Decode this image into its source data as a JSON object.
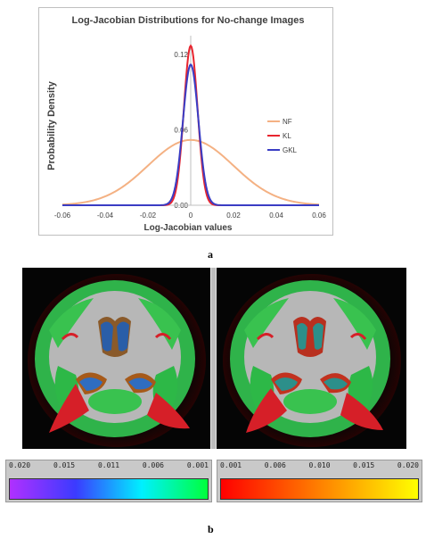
{
  "chart_data": {
    "type": "line",
    "title": "Log-Jacobian Distributions for No-change Images",
    "xlabel": "Log-Jacobian values",
    "ylabel": "Probability Density",
    "xlim": [
      -0.06,
      0.06
    ],
    "ylim": [
      0,
      0.135
    ],
    "x_ticks": [
      "-0.06",
      "-0.04",
      "-0.02",
      "0",
      "0.02",
      "0.04",
      "0.06"
    ],
    "y_ticks": [
      "0.00",
      "0.06",
      "0.12"
    ],
    "y_tick_values": [
      0,
      0.06,
      0.12
    ],
    "x_tick_values": [
      -0.06,
      -0.04,
      -0.02,
      0,
      0.02,
      0.04,
      0.06
    ],
    "legend_position": "right",
    "series": [
      {
        "name": "NF",
        "color": "#f4b183",
        "peak": 0.052,
        "sigma": 0.02
      },
      {
        "name": "KL",
        "color": "#e8252f",
        "peak": 0.127,
        "sigma": 0.0032
      },
      {
        "name": "GKL",
        "color": "#3a3dc4",
        "peak": 0.112,
        "sigma": 0.0036
      }
    ]
  },
  "labels": {
    "panel_a": "a",
    "panel_b": "b"
  },
  "colorbar_left": {
    "ticks": [
      "0.020",
      "0.015",
      "0.011",
      "0.006",
      "0.001"
    ],
    "colors": [
      "#b030ff",
      "#3b3bff",
      "#00f0ff",
      "#00ff3c"
    ]
  },
  "colorbar_right": {
    "ticks": [
      "0.001",
      "0.006",
      "0.010",
      "0.015",
      "0.020"
    ],
    "colors": [
      "#ff0000",
      "#ff8000",
      "#ffff00"
    ]
  }
}
